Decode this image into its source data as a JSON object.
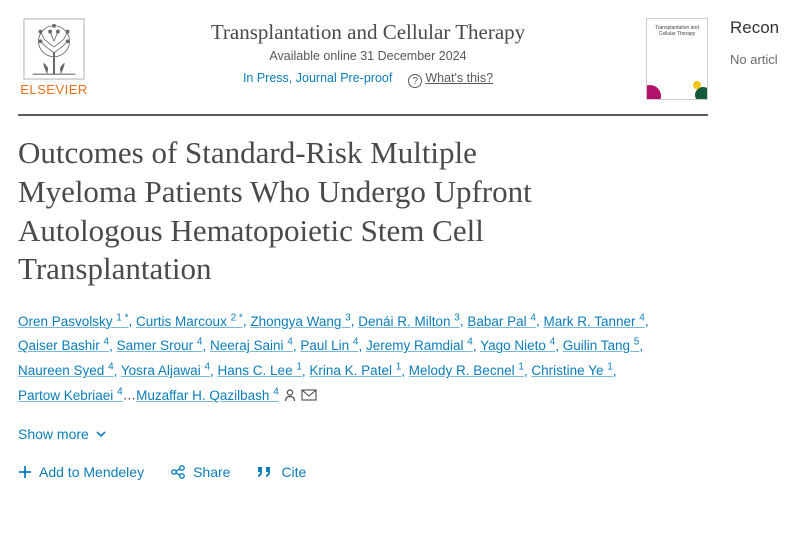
{
  "colors": {
    "link": "#0c7dbb",
    "brand": "#e9711c",
    "text": "#4a4a4a",
    "rule": "#5a5a5a"
  },
  "publisher": {
    "name": "ELSEVIER"
  },
  "journal": {
    "name": "Transplantation and Cellular Therapy",
    "online_date": "Available online 31 December 2024",
    "status": "In Press, Journal Pre-proof",
    "whats_this": "What's this?",
    "cover_alt": "Transplantation and Cellular Therapy"
  },
  "article": {
    "title": "Outcomes of Standard-Risk Multiple Myeloma Patients Who Undergo Upfront Autologous Hematopoietic Stem Cell Transplantation"
  },
  "authors": [
    {
      "name": "Oren Pasvolsky",
      "aff": "1",
      "note": "*"
    },
    {
      "name": "Curtis Marcoux",
      "aff": "2",
      "note": "*"
    },
    {
      "name": "Zhongya Wang",
      "aff": "3"
    },
    {
      "name": "Denái R. Milton",
      "aff": "3"
    },
    {
      "name": "Babar Pal",
      "aff": "4"
    },
    {
      "name": "Mark R. Tanner",
      "aff": "4"
    },
    {
      "name": "Qaiser Bashir",
      "aff": "4"
    },
    {
      "name": "Samer Srour",
      "aff": "4"
    },
    {
      "name": "Neeraj Saini",
      "aff": "4"
    },
    {
      "name": "Paul Lin",
      "aff": "4"
    },
    {
      "name": "Jeremy Ramdial",
      "aff": "4"
    },
    {
      "name": "Yago Nieto",
      "aff": "4"
    },
    {
      "name": "Guilin Tang",
      "aff": "5"
    },
    {
      "name": "Naureen Syed",
      "aff": "4"
    },
    {
      "name": "Yosra Aljawai",
      "aff": "4"
    },
    {
      "name": "Hans C. Lee",
      "aff": "1"
    },
    {
      "name": "Krina K. Patel",
      "aff": "1"
    },
    {
      "name": "Melody R. Becnel",
      "aff": "1"
    },
    {
      "name": "Christine Ye",
      "aff": "1"
    },
    {
      "name": "Partow Kebriaei",
      "aff": "4"
    }
  ],
  "corresponding": {
    "name": "Muzaffar H. Qazilbash",
    "aff": "4"
  },
  "show_more": "Show more",
  "actions": {
    "mendeley": "Add to Mendeley",
    "share": "Share",
    "cite": "Cite"
  },
  "sidebar": {
    "title": "Recon",
    "message": "No articl"
  }
}
